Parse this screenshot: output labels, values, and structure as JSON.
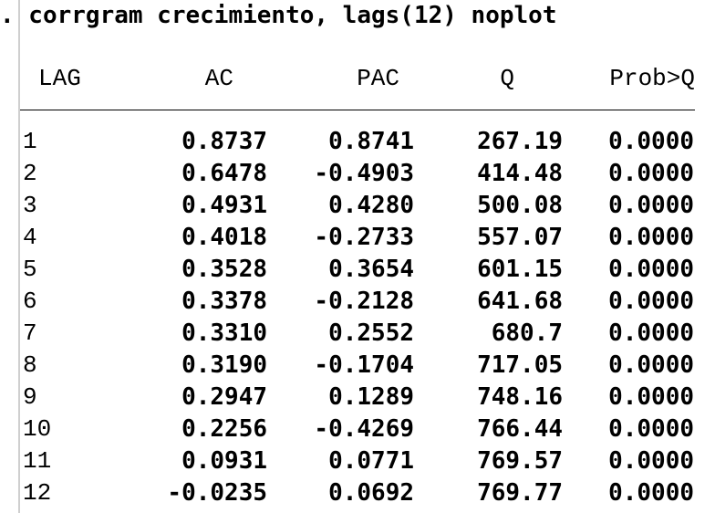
{
  "command": ". corrgram crecimiento, lags(12) noplot",
  "table": {
    "headers": {
      "lag": "LAG",
      "ac": "AC",
      "pac": "PAC",
      "q": "Q",
      "prob": "Prob>Q"
    },
    "rows": [
      {
        "lag": "1",
        "ac": "0.8737",
        "pac": "0.8741",
        "q": "267.19",
        "prob": "0.0000"
      },
      {
        "lag": "2",
        "ac": "0.6478",
        "pac": "-0.4903",
        "q": "414.48",
        "prob": "0.0000"
      },
      {
        "lag": "3",
        "ac": "0.4931",
        "pac": "0.4280",
        "q": "500.08",
        "prob": "0.0000"
      },
      {
        "lag": "4",
        "ac": "0.4018",
        "pac": "-0.2733",
        "q": "557.07",
        "prob": "0.0000"
      },
      {
        "lag": "5",
        "ac": "0.3528",
        "pac": "0.3654",
        "q": "601.15",
        "prob": "0.0000"
      },
      {
        "lag": "6",
        "ac": "0.3378",
        "pac": "-0.2128",
        "q": "641.68",
        "prob": "0.0000"
      },
      {
        "lag": "7",
        "ac": "0.3310",
        "pac": "0.2552",
        "q": "680.7",
        "prob": "0.0000"
      },
      {
        "lag": "8",
        "ac": "0.3190",
        "pac": "-0.1704",
        "q": "717.05",
        "prob": "0.0000"
      },
      {
        "lag": "9",
        "ac": "0.2947",
        "pac": "0.1289",
        "q": "748.16",
        "prob": "0.0000"
      },
      {
        "lag": "10",
        "ac": "0.2256",
        "pac": "-0.4269",
        "q": "766.44",
        "prob": "0.0000"
      },
      {
        "lag": "11",
        "ac": "0.0931",
        "pac": "0.0771",
        "q": "769.57",
        "prob": "0.0000"
      },
      {
        "lag": "12",
        "ac": "-0.0235",
        "pac": "0.0692",
        "q": "769.77",
        "prob": "0.0000"
      }
    ]
  }
}
